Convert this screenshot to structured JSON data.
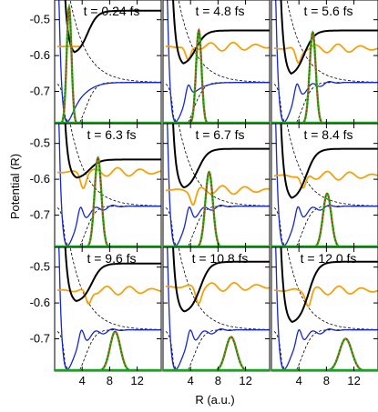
{
  "figure": {
    "ylabel": "Potential (R)",
    "xlabel": "R (a.u.)"
  },
  "colors": {
    "black_curve": "#000000",
    "orange_curve": "#f4a20c",
    "blue_curve": "#1426d6",
    "dashed_curve": "#000000",
    "green_wavepacket": "#12c21a",
    "red_wavepacket": "#e8141b",
    "axis_bottom": "#12a81a"
  },
  "chart_data": {
    "type": "line",
    "layout": "3x3 grid of panels, shared axes",
    "xlim": [
      0,
      15.5
    ],
    "ylim": [
      -0.79,
      -0.445
    ],
    "xticks": [
      4,
      8,
      12
    ],
    "yticks": [
      -0.5,
      -0.6,
      -0.7
    ],
    "xtick_labels": [
      "4",
      "8",
      "12"
    ],
    "ytick_labels": [
      "-0.5",
      "-0.6",
      "-0.7"
    ],
    "series_legend": [],
    "panels": [
      {
        "title": "t = 0.24 fs",
        "wavepacket_center": 2.1,
        "wavepacket_width": 0.35,
        "wavepacket_height": -0.465,
        "black_asym": -0.475,
        "orange_level": -0.575,
        "orange_end": 4.0
      },
      {
        "title": "t = 4.8 fs",
        "wavepacket_center": 5.2,
        "wavepacket_width": 0.4,
        "wavepacket_height": -0.53,
        "black_asym": -0.53,
        "orange_level": -0.575,
        "orange_end": 15.5
      },
      {
        "title": "t = 5.6 fs",
        "wavepacket_center": 6.0,
        "wavepacket_width": 0.45,
        "wavepacket_height": -0.535,
        "black_asym": -0.53,
        "orange_level": -0.58,
        "orange_end": 15.5
      },
      {
        "title": "t = 6.3 fs",
        "wavepacket_center": 6.3,
        "wavepacket_width": 0.5,
        "wavepacket_height": -0.54,
        "black_asym": -0.545,
        "orange_level": -0.58,
        "orange_end": 15.5
      },
      {
        "title": "t = 6.7 fs",
        "wavepacket_center": 6.7,
        "wavepacket_width": 0.55,
        "wavepacket_height": -0.58,
        "black_asym": -0.515,
        "orange_level": -0.63,
        "orange_end": 15.5
      },
      {
        "title": "t = 8.4 fs",
        "wavepacket_center": 8.1,
        "wavepacket_width": 0.6,
        "wavepacket_height": -0.64,
        "black_asym": -0.515,
        "orange_level": -0.59,
        "orange_end": 15.5
      },
      {
        "title": "t = 9.6 fs",
        "wavepacket_center": 8.8,
        "wavepacket_width": 0.75,
        "wavepacket_height": -0.68,
        "black_asym": -0.49,
        "orange_level": -0.565,
        "orange_end": 15.5
      },
      {
        "title": "t = 10.8 fs",
        "wavepacket_center": 9.9,
        "wavepacket_width": 0.8,
        "wavepacket_height": -0.695,
        "black_asym": -0.485,
        "orange_level": -0.555,
        "orange_end": 15.5
      },
      {
        "title": "t = 12.0 fs",
        "wavepacket_center": 10.8,
        "wavepacket_width": 0.9,
        "wavepacket_height": -0.7,
        "black_asym": -0.485,
        "orange_level": -0.565,
        "orange_end": 15.5
      }
    ]
  }
}
